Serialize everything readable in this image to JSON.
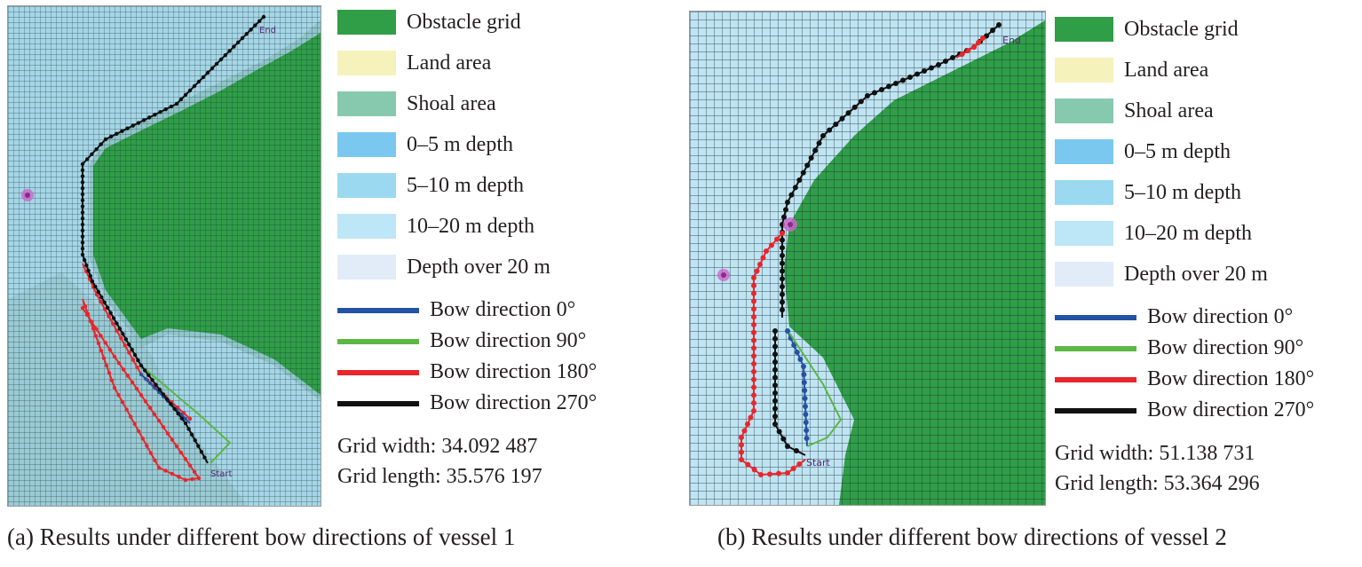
{
  "colors": {
    "obstacle": "#2f9e47",
    "land": "#f6f2bb",
    "shoal": "#86c9ae",
    "depth_0_5": "#7ac8ef",
    "depth_5_10": "#9ad9f0",
    "depth_10_20": "#bde6f6",
    "depth_over_20": "#e2ecf8",
    "bow_0": "#2352a4",
    "bow_90": "#5db744",
    "bow_180": "#e8262b",
    "bow_270": "#111111"
  },
  "panels": [
    {
      "legend": [
        {
          "label": "Obstacle grid",
          "color": "#2f9e47"
        },
        {
          "label": "Land area",
          "color": "#f6f2bb"
        },
        {
          "label": "Shoal area",
          "color": "#86c9ae"
        },
        {
          "label": "0–5 m depth",
          "color": "#7ac8ef"
        },
        {
          "label": "5–10 m depth",
          "color": "#9ad9f0"
        },
        {
          "label": "10–20 m depth",
          "color": "#bde6f6"
        },
        {
          "label": "Depth over 20 m",
          "color": "#e2ecf8"
        }
      ],
      "lines": [
        {
          "label": "Bow direction 0°",
          "color": "#2352a4"
        },
        {
          "label": "Bow direction 90°",
          "color": "#5db744"
        },
        {
          "label": "Bow direction 180°",
          "color": "#e8262b"
        },
        {
          "label": "Bow direction 270°",
          "color": "#111111"
        }
      ],
      "grid_width": "Grid width: 34.092 487",
      "grid_length": "Grid length: 35.576 197",
      "caption": "(a) Results under different bow directions of vessel 1",
      "start_label": "Start",
      "end_label": "End"
    },
    {
      "legend": [
        {
          "label": "Obstacle grid",
          "color": "#2f9e47"
        },
        {
          "label": "Land area",
          "color": "#f6f2bb"
        },
        {
          "label": "Shoal area",
          "color": "#86c9ae"
        },
        {
          "label": "0–5 m depth",
          "color": "#7ac8ef"
        },
        {
          "label": "5–10 m depth",
          "color": "#9ad9f0"
        },
        {
          "label": "10–20 m depth",
          "color": "#bde6f6"
        },
        {
          "label": "Depth over 20 m",
          "color": "#e2ecf8"
        }
      ],
      "lines": [
        {
          "label": "Bow direction 0°",
          "color": "#2352a4"
        },
        {
          "label": "Bow direction 90°",
          "color": "#5db744"
        },
        {
          "label": "Bow direction 180°",
          "color": "#e8262b"
        },
        {
          "label": "Bow direction 270°",
          "color": "#111111"
        }
      ],
      "grid_width": "Grid width: 51.138 731",
      "grid_length": "Grid length: 53.364 296",
      "caption": "(b) Results under different bow directions of vessel 2",
      "start_label": "Start",
      "end_label": "End"
    }
  ]
}
